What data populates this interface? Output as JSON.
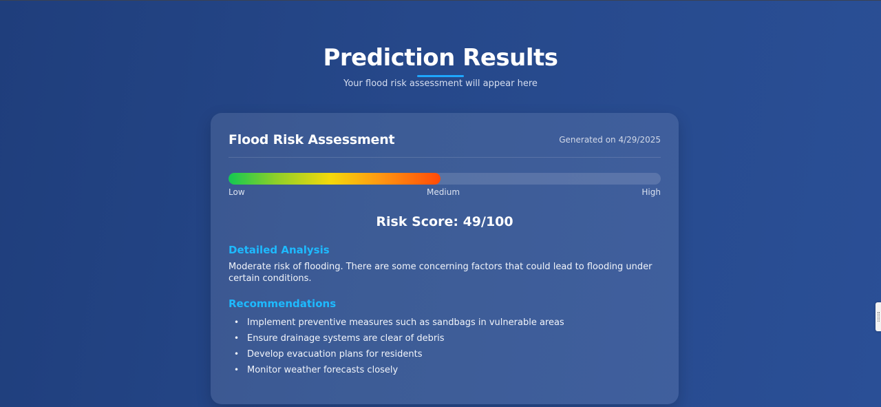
{
  "header": {
    "title": "Prediction Results",
    "subtitle": "Your flood risk assessment will appear here"
  },
  "card": {
    "title": "Flood Risk Assessment",
    "generated": "Generated on 4/29/2025",
    "gauge": {
      "fill_fraction": 0.49,
      "labels": [
        "Low",
        "Medium",
        "High"
      ]
    },
    "risk_score": "Risk Score: 49/100",
    "analysis": {
      "heading": "Detailed Analysis",
      "text": "Moderate risk of flooding. There are some concerning factors that could lead to flooding under certain conditions."
    },
    "recommendations": {
      "heading": "Recommendations",
      "items": [
        "Implement preventive measures such as sandbags in vulnerable areas",
        "Ensure drainage systems are clear of debris",
        "Develop evacuation plans for residents",
        "Monitor weather forecasts closely"
      ]
    }
  },
  "colors": {
    "accent": "#1ea7ff",
    "section_heading": "#1ebaff",
    "gauge_low": "#13c852",
    "gauge_mid": "#f4d90c",
    "gauge_high": "#ff4a08"
  },
  "icons": {
    "side_tab": "drag-handle-icon"
  }
}
